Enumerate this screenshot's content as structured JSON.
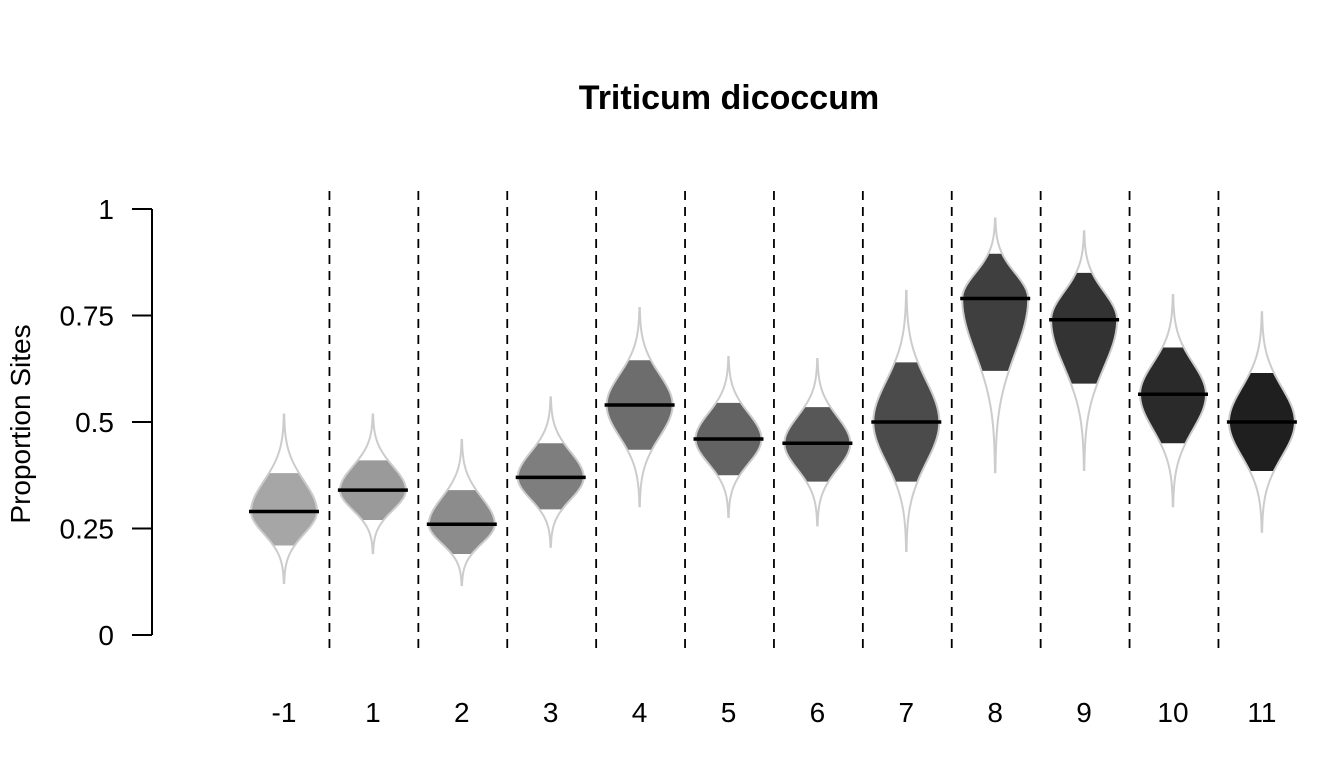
{
  "chart_data": {
    "type": "violin",
    "title": "Triticum dicoccum",
    "xlabel": "",
    "ylabel": "Proportion Sites",
    "ylim": [
      0,
      1
    ],
    "y_ticks": [
      0,
      0.25,
      0.5,
      0.75,
      1
    ],
    "y_tick_labels": [
      "0",
      "0.25",
      "0.5",
      "0.75",
      "1"
    ],
    "categories": [
      "-1",
      "1",
      "2",
      "3",
      "4",
      "5",
      "6",
      "7",
      "8",
      "9",
      "10",
      "11"
    ],
    "separators": "dashed vertical lines between categories",
    "grid": false,
    "legend": "none",
    "colors": {
      "outline": "#cccccc",
      "median": "#000000",
      "fills": [
        "#a6a6a6",
        "#9a9a9a",
        "#8c8c8c",
        "#7e7e7e",
        "#6d6d6d",
        "#636363",
        "#575757",
        "#4b4b4b",
        "#3f3f3f",
        "#333333",
        "#2a2a2a",
        "#1f1f1f"
      ]
    },
    "series": [
      {
        "category": "-1",
        "min": 0.12,
        "q_low": 0.21,
        "median": 0.29,
        "q_high": 0.38,
        "max": 0.52
      },
      {
        "category": "1",
        "min": 0.19,
        "q_low": 0.27,
        "median": 0.34,
        "q_high": 0.41,
        "max": 0.52
      },
      {
        "category": "2",
        "min": 0.115,
        "q_low": 0.19,
        "median": 0.26,
        "q_high": 0.34,
        "max": 0.46
      },
      {
        "category": "3",
        "min": 0.205,
        "q_low": 0.295,
        "median": 0.37,
        "q_high": 0.45,
        "max": 0.56
      },
      {
        "category": "4",
        "min": 0.3,
        "q_low": 0.435,
        "median": 0.54,
        "q_high": 0.645,
        "max": 0.77
      },
      {
        "category": "5",
        "min": 0.275,
        "q_low": 0.375,
        "median": 0.46,
        "q_high": 0.545,
        "max": 0.655
      },
      {
        "category": "6",
        "min": 0.255,
        "q_low": 0.36,
        "median": 0.45,
        "q_high": 0.535,
        "max": 0.65
      },
      {
        "category": "7",
        "min": 0.195,
        "q_low": 0.36,
        "median": 0.5,
        "q_high": 0.64,
        "max": 0.81
      },
      {
        "category": "8",
        "min": 0.38,
        "q_low": 0.62,
        "median": 0.79,
        "q_high": 0.895,
        "max": 0.98
      },
      {
        "category": "9",
        "min": 0.385,
        "q_low": 0.59,
        "median": 0.74,
        "q_high": 0.85,
        "max": 0.95
      },
      {
        "category": "10",
        "min": 0.3,
        "q_low": 0.45,
        "median": 0.565,
        "q_high": 0.675,
        "max": 0.8
      },
      {
        "category": "11",
        "min": 0.24,
        "q_low": 0.385,
        "median": 0.5,
        "q_high": 0.615,
        "max": 0.76
      }
    ]
  }
}
